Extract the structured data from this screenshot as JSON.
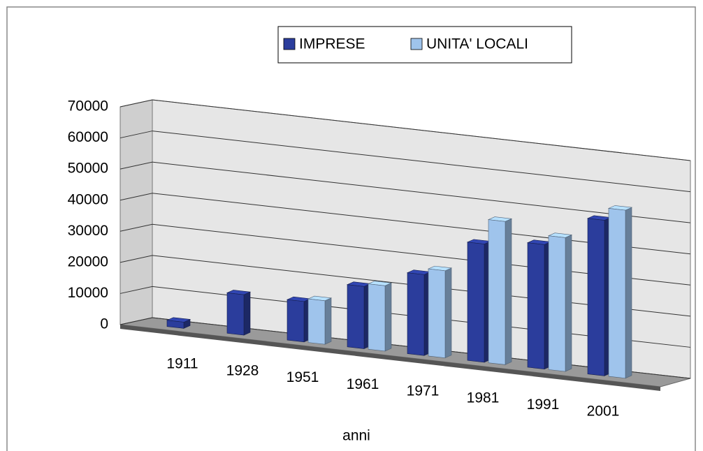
{
  "chart_data": {
    "type": "bar3d",
    "x_label": "anni",
    "categories": [
      "1911",
      "1928",
      "1951",
      "1961",
      "1971",
      "1981",
      "1991",
      "2001"
    ],
    "series": [
      {
        "name": "IMPRESE",
        "color": "#2b3d9c",
        "values": [
          2000,
          13000,
          13000,
          20000,
          26000,
          38000,
          40000,
          50000
        ]
      },
      {
        "name": "UNITA' LOCALI",
        "color": "#9fc4ec",
        "values": [
          null,
          null,
          14000,
          21000,
          28000,
          46000,
          43000,
          54000
        ]
      }
    ],
    "ylim": [
      0,
      70000
    ],
    "yticks": [
      0,
      10000,
      20000,
      30000,
      40000,
      50000,
      60000,
      70000
    ],
    "grid": true,
    "legend": "top"
  }
}
